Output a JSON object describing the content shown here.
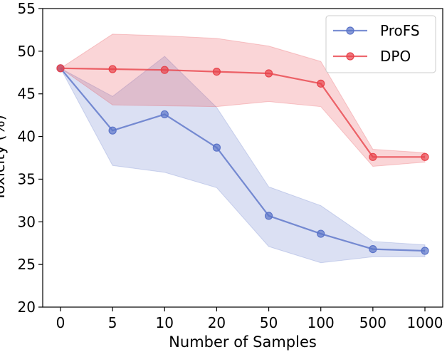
{
  "chart_data": {
    "type": "line",
    "title": "",
    "xlabel": "Number of Samples",
    "ylabel": "Toxicity (%)",
    "categories": [
      "0",
      "5",
      "10",
      "20",
      "50",
      "100",
      "500",
      "1000"
    ],
    "ylim": [
      20,
      55
    ],
    "yticks": [
      20,
      25,
      30,
      35,
      40,
      45,
      50,
      55
    ],
    "grid": false,
    "legend_position": "top-right",
    "series": [
      {
        "name": "ProFS",
        "color": "#5a73c8",
        "values": [
          48.0,
          40.7,
          42.6,
          38.7,
          30.7,
          28.6,
          26.8,
          26.6
        ],
        "lower": [
          48.0,
          36.6,
          35.8,
          34.0,
          27.1,
          25.2,
          25.9,
          25.9
        ],
        "upper": [
          48.0,
          44.7,
          49.4,
          43.4,
          34.1,
          31.9,
          27.7,
          27.3
        ]
      },
      {
        "name": "DPO",
        "color": "#e8424a",
        "values": [
          48.0,
          47.9,
          47.8,
          47.6,
          47.4,
          46.2,
          37.6,
          37.6
        ],
        "lower": [
          48.0,
          43.7,
          43.6,
          43.5,
          44.1,
          43.5,
          36.5,
          37.0
        ],
        "upper": [
          48.0,
          52.0,
          51.8,
          51.5,
          50.6,
          48.8,
          38.5,
          38.1
        ]
      }
    ]
  }
}
